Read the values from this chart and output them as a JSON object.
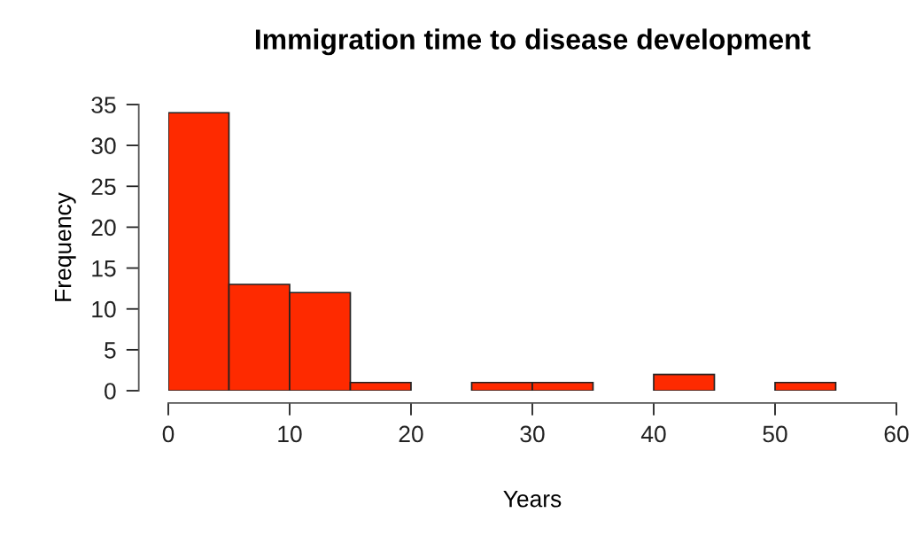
{
  "chart_data": {
    "type": "histogram",
    "title": "Immigration time to disease development",
    "xlabel": "Years",
    "ylabel": "Frequency",
    "bins": [
      0,
      5,
      10,
      15,
      20,
      25,
      30,
      35,
      40,
      45,
      50,
      55
    ],
    "values": [
      34,
      13,
      12,
      1,
      0,
      1,
      1,
      0,
      2,
      0,
      1
    ],
    "color": "#fe2a00",
    "xlim": [
      0,
      60
    ],
    "xticks": [
      0,
      10,
      20,
      30,
      40,
      50,
      60
    ],
    "ylim": [
      0,
      35
    ],
    "yticks": [
      0,
      5,
      10,
      15,
      20,
      25,
      30,
      35
    ],
    "grid": false,
    "legend": false
  }
}
